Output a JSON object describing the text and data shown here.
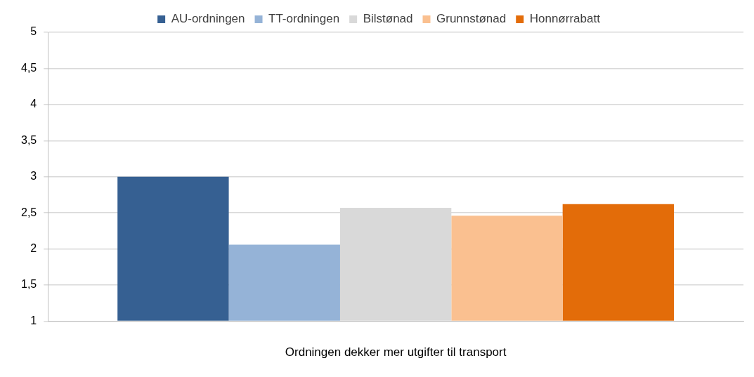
{
  "chart_data": {
    "type": "bar",
    "xlabel": "Ordningen dekker mer utgifter til transport",
    "categories": [
      null
    ],
    "series": [
      {
        "name": "AU-ordningen",
        "color": "#366092",
        "values": [
          3.0
        ]
      },
      {
        "name": "TT-ordningen",
        "color": "#95b3d7",
        "values": [
          2.06
        ]
      },
      {
        "name": "Bilstønad",
        "color": "#d9d9d9",
        "values": [
          2.57
        ]
      },
      {
        "name": "Grunnstønad",
        "color": "#fac090",
        "values": [
          2.46
        ]
      },
      {
        "name": "Honnørrabatt",
        "color": "#e36c09",
        "values": [
          2.62
        ]
      }
    ],
    "ylim": [
      1,
      5
    ],
    "yticks": [
      {
        "value": 1,
        "label": "1"
      },
      {
        "value": 1.5,
        "label": "1,5"
      },
      {
        "value": 2,
        "label": "2"
      },
      {
        "value": 2.5,
        "label": "2,5"
      },
      {
        "value": 3,
        "label": "3"
      },
      {
        "value": 3.5,
        "label": "3,5"
      },
      {
        "value": 4,
        "label": "4"
      },
      {
        "value": 4.5,
        "label": "4,5"
      },
      {
        "value": 5,
        "label": "5"
      }
    ],
    "grid": "y",
    "legend": "top"
  }
}
